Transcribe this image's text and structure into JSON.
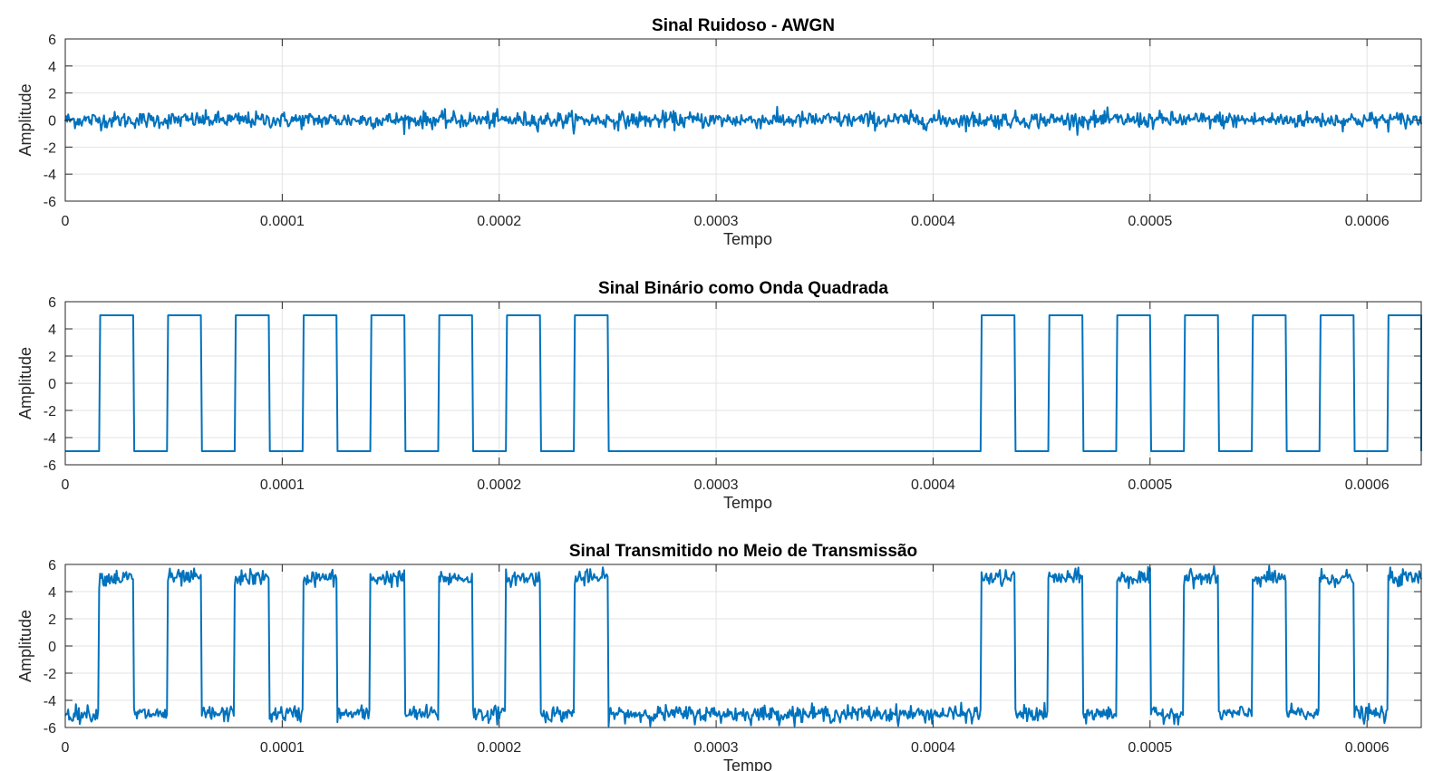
{
  "figure": {
    "colors": {
      "trace": "#0072BD",
      "background": "#ffffff",
      "grid": "#e3e3e3",
      "axes": "#262626"
    }
  },
  "chart_data": [
    {
      "type": "line",
      "title": "Sinal Ruidoso - AWGN",
      "xlabel": "Tempo",
      "ylabel": "Amplitude",
      "xlim": [
        0,
        0.000625
      ],
      "ylim": [
        -6,
        6
      ],
      "xticks": [
        0,
        0.0001,
        0.0002,
        0.0003,
        0.0004,
        0.0005,
        0.0006
      ],
      "xtick_labels": [
        "0",
        "0.0001",
        "0.0002",
        "0.0003",
        "0.0004",
        "0.0005",
        "0.0006"
      ],
      "yticks": [
        -6,
        -4,
        -2,
        0,
        2,
        4,
        6
      ],
      "ytick_labels": [
        "-6",
        "-4",
        "-2",
        "0",
        "2",
        "4",
        "6"
      ],
      "grid": true,
      "signal": {
        "kind": "noise",
        "mean": 0,
        "std": 0.3
      }
    },
    {
      "type": "line",
      "title": "Sinal Binário como Onda Quadrada",
      "xlabel": "Tempo",
      "ylabel": "Amplitude",
      "xlim": [
        0,
        0.000625
      ],
      "ylim": [
        -6,
        6
      ],
      "xticks": [
        0,
        0.0001,
        0.0002,
        0.0003,
        0.0004,
        0.0005,
        0.0006
      ],
      "xtick_labels": [
        "0",
        "0.0001",
        "0.0002",
        "0.0003",
        "0.0004",
        "0.0005",
        "0.0006"
      ],
      "yticks": [
        -6,
        -4,
        -2,
        0,
        2,
        4,
        6
      ],
      "ytick_labels": [
        "-6",
        "-4",
        "-2",
        "0",
        "2",
        "4",
        "6"
      ],
      "grid": true,
      "signal": {
        "kind": "square",
        "low": -5,
        "high": 5,
        "high_intervals": [
          [
            1.56e-05,
            3.13e-05
          ],
          [
            4.69e-05,
            6.25e-05
          ],
          [
            7.81e-05,
            9.38e-05
          ],
          [
            0.0001094,
            0.000125
          ],
          [
            0.0001406,
            0.0001563
          ],
          [
            0.0001719,
            0.0001875
          ],
          [
            0.0002031,
            0.0002188
          ],
          [
            0.0002344,
            0.00025
          ],
          [
            0.0004219,
            0.0004375
          ],
          [
            0.0004531,
            0.0004688
          ],
          [
            0.0004844,
            0.0005
          ],
          [
            0.0005156,
            0.0005313
          ],
          [
            0.0005469,
            0.0005625
          ],
          [
            0.0005781,
            0.0005938
          ],
          [
            0.0006094,
            0.000625
          ]
        ]
      }
    },
    {
      "type": "line",
      "title": "Sinal Transmitido no Meio de Transmissão",
      "xlabel": "Tempo",
      "ylabel": "Amplitude",
      "xlim": [
        0,
        0.000625
      ],
      "ylim": [
        -6,
        6
      ],
      "xticks": [
        0,
        0.0001,
        0.0002,
        0.0003,
        0.0004,
        0.0005,
        0.0006
      ],
      "xtick_labels": [
        "0",
        "0.0001",
        "0.0002",
        "0.0003",
        "0.0004",
        "0.0005",
        "0.0006"
      ],
      "yticks": [
        -6,
        -4,
        -2,
        0,
        2,
        4,
        6
      ],
      "ytick_labels": [
        "-6",
        "-4",
        "-2",
        "0",
        "2",
        "4",
        "6"
      ],
      "grid": true,
      "signal": {
        "kind": "square_plus_noise",
        "low": -5,
        "high": 5,
        "noise_std": 0.3
      }
    }
  ]
}
